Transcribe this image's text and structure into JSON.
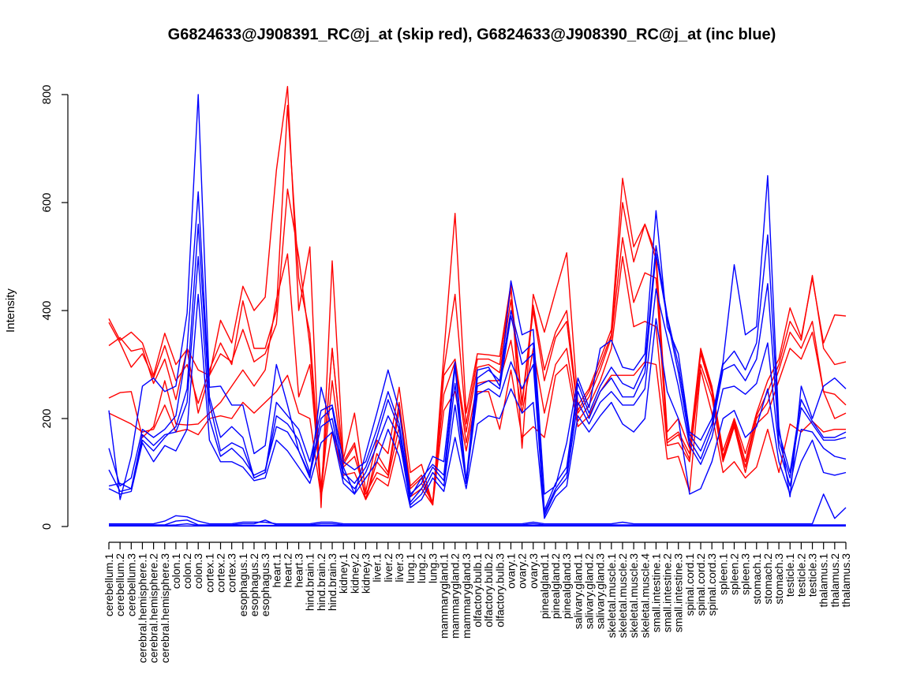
{
  "chart_data": {
    "type": "line",
    "title": "G6824633@J908391_RC@j_at (skip red), G6824633@J908390_RC@j_at (inc blue)",
    "xlabel": "",
    "ylabel": "Intensity",
    "ylim": [
      0,
      800
    ],
    "yticks": [
      0,
      200,
      400,
      600,
      800
    ],
    "grid": false,
    "categories": [
      "cerebellum.1",
      "cerebellum.2",
      "cerebellum.3",
      "cerebral.hemisphere.1",
      "cerebral.hemisphere.2",
      "cerebral.hemisphere.3",
      "colon.1",
      "colon.2",
      "colon.3",
      "cortex.1",
      "cortex.2",
      "cortex.3",
      "esophagus.1",
      "esophagus.2",
      "esophagus.3",
      "heart.1",
      "heart.2",
      "heart.3",
      "hind.brain.1",
      "hind.brain.2",
      "hind.brain.3",
      "kidney.1",
      "kidney.2",
      "kidney.3",
      "liver.1",
      "liver.2",
      "liver.3",
      "lung.1",
      "lung.2",
      "lung.3",
      "mammarygland.1",
      "mammarygland.2",
      "mammarygland.3",
      "olfactory.bulb.1",
      "olfactory.bulb.2",
      "olfactory.bulb.3",
      "ovary.1",
      "ovary.2",
      "ovary.3",
      "pinealgland.1",
      "pinealgland.2",
      "pinealgland.3",
      "salivary.gland.1",
      "salivary.gland.2",
      "salivary.gland.3",
      "skeletal.muscle.1",
      "skeletal.muscle.2",
      "skeletal.muscle.3",
      "skeletal.muscle.4",
      "small.intestine.1",
      "small.intestine.2",
      "small.intestine.3",
      "spinal.cord.1",
      "spinal.cord.2",
      "spinal.cord.3",
      "spleen.1",
      "spleen.2",
      "spleen.3",
      "stomach.1",
      "stomach.2",
      "stomach.3",
      "testicle.1",
      "testicle.2",
      "testicle.3",
      "thalamus.1",
      "thalamus.2",
      "thalamus.3"
    ],
    "series": [
      {
        "color": "#ff0000",
        "values": [
          385,
          345,
          360,
          340,
          280,
          358,
          300,
          328,
          210,
          280,
          382,
          340,
          445,
          400,
          425,
          660,
          815,
          400,
          518,
          35,
          492,
          125,
          210,
          65,
          160,
          135,
          258,
          100,
          115,
          40,
          320,
          580,
          210,
          320,
          318,
          315,
          450,
          145,
          430,
          360,
          435,
          507,
          225,
          255,
          310,
          365,
          645,
          518,
          560,
          505,
          175,
          200,
          145,
          330,
          260,
          140,
          200,
          135,
          210,
          270,
          310,
          405,
          350,
          460,
          340,
          392,
          390
        ]
      },
      {
        "color": "#ff0000",
        "values": [
          378,
          340,
          295,
          320,
          275,
          335,
          270,
          300,
          228,
          290,
          340,
          300,
          418,
          330,
          330,
          400,
          780,
          460,
          358,
          70,
          330,
          120,
          155,
          50,
          135,
          100,
          230,
          75,
          95,
          45,
          290,
          430,
          190,
          310,
          310,
          300,
          440,
          230,
          410,
          290,
          360,
          400,
          215,
          250,
          300,
          355,
          600,
          490,
          560,
          495,
          160,
          175,
          135,
          325,
          255,
          130,
          195,
          120,
          205,
          250,
          300,
          380,
          345,
          465,
          330,
          300,
          305
        ]
      },
      {
        "color": "#ff0000",
        "values": [
          335,
          350,
          325,
          330,
          265,
          310,
          235,
          330,
          290,
          280,
          320,
          305,
          365,
          305,
          320,
          375,
          625,
          500,
          335,
          60,
          330,
          115,
          150,
          50,
          120,
          95,
          215,
          70,
          90,
          40,
          280,
          310,
          175,
          295,
          300,
          285,
          420,
          225,
          400,
          270,
          350,
          380,
          210,
          240,
          290,
          350,
          535,
          415,
          470,
          460,
          155,
          170,
          125,
          320,
          250,
          125,
          190,
          110,
          200,
          230,
          290,
          360,
          330,
          380,
          250,
          245,
          225
        ]
      },
      {
        "color": "#ff0000",
        "values": [
          238,
          248,
          250,
          165,
          185,
          270,
          190,
          188,
          190,
          210,
          230,
          260,
          290,
          260,
          290,
          420,
          505,
          240,
          300,
          60,
          270,
          110,
          130,
          60,
          100,
          90,
          185,
          60,
          80,
          45,
          245,
          305,
          155,
          265,
          270,
          270,
          345,
          210,
          330,
          210,
          300,
          330,
          195,
          225,
          270,
          330,
          500,
          370,
          380,
          370,
          150,
          155,
          120,
          300,
          240,
          120,
          185,
          100,
          190,
          210,
          270,
          330,
          310,
          360,
          250,
          200,
          210
        ]
      },
      {
        "color": "#ff0000",
        "values": [
          210,
          200,
          190,
          175,
          180,
          225,
          175,
          180,
          170,
          200,
          205,
          200,
          230,
          210,
          230,
          250,
          280,
          210,
          200,
          55,
          175,
          95,
          100,
          50,
          90,
          75,
          160,
          55,
          70,
          40,
          215,
          250,
          140,
          250,
          250,
          180,
          290,
          165,
          185,
          165,
          280,
          300,
          185,
          205,
          250,
          280,
          280,
          280,
          305,
          300,
          125,
          130,
          65,
          290,
          210,
          100,
          120,
          90,
          110,
          180,
          100,
          190,
          175,
          195,
          175,
          180,
          180
        ]
      },
      {
        "color": "#0000ff",
        "values": [
          215,
          50,
          130,
          260,
          275,
          250,
          260,
          395,
          800,
          258,
          260,
          225,
          225,
          135,
          150,
          300,
          225,
          140,
          90,
          258,
          180,
          110,
          60,
          135,
          210,
          290,
          215,
          60,
          80,
          130,
          120,
          305,
          85,
          290,
          295,
          260,
          455,
          355,
          365,
          60,
          75,
          155,
          275,
          220,
          330,
          345,
          295,
          290,
          320,
          585,
          370,
          320,
          175,
          160,
          200,
          305,
          485,
          355,
          370,
          650,
          185,
          55,
          260,
          200,
          260,
          275,
          255
        ]
      },
      {
        "color": "#0000ff",
        "values": [
          145,
          75,
          90,
          180,
          165,
          180,
          205,
          330,
          620,
          240,
          165,
          185,
          165,
          90,
          100,
          230,
          205,
          180,
          120,
          215,
          225,
          120,
          105,
          120,
          180,
          250,
          190,
          55,
          90,
          115,
          95,
          295,
          80,
          275,
          290,
          270,
          400,
          320,
          340,
          30,
          80,
          110,
          265,
          210,
          260,
          295,
          265,
          255,
          300,
          520,
          390,
          300,
          170,
          140,
          190,
          300,
          325,
          290,
          340,
          540,
          175,
          100,
          235,
          195,
          165,
          165,
          175
        ]
      },
      {
        "color": "#0000ff",
        "values": [
          105,
          65,
          70,
          160,
          140,
          165,
          185,
          255,
          560,
          230,
          140,
          155,
          145,
          90,
          100,
          205,
          190,
          160,
          100,
          200,
          220,
          100,
          80,
          110,
          165,
          235,
          180,
          45,
          70,
          110,
          85,
          265,
          80,
          260,
          270,
          255,
          390,
          300,
          320,
          25,
          70,
          100,
          250,
          200,
          250,
          275,
          240,
          240,
          285,
          505,
          385,
          285,
          160,
          125,
          180,
          290,
          300,
          270,
          310,
          450,
          160,
          90,
          220,
          190,
          160,
          160,
          165
        ]
      },
      {
        "color": "#0000ff",
        "values": [
          75,
          80,
          70,
          170,
          150,
          170,
          175,
          230,
          500,
          200,
          130,
          145,
          125,
          95,
          105,
          185,
          175,
          140,
          95,
          185,
          200,
          90,
          70,
          100,
          150,
          205,
          165,
          40,
          60,
          100,
          75,
          225,
          80,
          245,
          255,
          240,
          305,
          255,
          300,
          20,
          65,
          90,
          230,
          190,
          230,
          250,
          225,
          225,
          255,
          440,
          350,
          260,
          150,
          115,
          165,
          255,
          260,
          245,
          265,
          340,
          145,
          75,
          180,
          175,
          145,
          130,
          125
        ]
      },
      {
        "color": "#0000ff",
        "values": [
          70,
          60,
          65,
          155,
          120,
          150,
          140,
          180,
          430,
          160,
          120,
          120,
          110,
          85,
          90,
          160,
          140,
          110,
          80,
          155,
          175,
          80,
          60,
          90,
          120,
          180,
          130,
          35,
          50,
          90,
          65,
          165,
          70,
          190,
          205,
          200,
          255,
          210,
          230,
          15,
          55,
          75,
          205,
          175,
          205,
          230,
          190,
          175,
          200,
          385,
          250,
          200,
          60,
          70,
          120,
          200,
          215,
          165,
          185,
          255,
          120,
          60,
          120,
          160,
          100,
          95,
          100
        ]
      },
      {
        "color": "#0000ff",
        "values": [
          5,
          5,
          5,
          5,
          5,
          10,
          20,
          18,
          10,
          5,
          5,
          5,
          8,
          8,
          8,
          5,
          5,
          5,
          5,
          8,
          8,
          5,
          5,
          5,
          5,
          5,
          5,
          5,
          5,
          5,
          5,
          5,
          5,
          5,
          5,
          5,
          5,
          5,
          8,
          5,
          5,
          5,
          5,
          5,
          5,
          5,
          8,
          5,
          5,
          5,
          5,
          5,
          5,
          5,
          5,
          5,
          5,
          5,
          5,
          5,
          5,
          5,
          5,
          5,
          60,
          15,
          35
        ]
      },
      {
        "color": "#0000ff",
        "values": [
          3,
          3,
          3,
          3,
          3,
          3,
          10,
          12,
          3,
          3,
          3,
          3,
          5,
          5,
          12,
          3,
          3,
          3,
          3,
          5,
          5,
          3,
          3,
          3,
          3,
          3,
          3,
          3,
          3,
          3,
          3,
          3,
          3,
          3,
          3,
          3,
          3,
          3,
          5,
          3,
          3,
          3,
          3,
          3,
          3,
          3,
          3,
          3,
          3,
          3,
          3,
          3,
          3,
          3,
          3,
          3,
          3,
          3,
          3,
          3,
          3,
          3,
          3,
          3,
          3,
          3,
          3
        ]
      },
      {
        "color": "#0000ff",
        "values": [
          2,
          2,
          2,
          2,
          2,
          2,
          3,
          5,
          2,
          2,
          2,
          2,
          2,
          2,
          2,
          2,
          2,
          2,
          2,
          2,
          2,
          2,
          2,
          2,
          2,
          2,
          2,
          2,
          2,
          2,
          2,
          2,
          2,
          2,
          2,
          2,
          2,
          2,
          2,
          2,
          2,
          2,
          2,
          2,
          2,
          2,
          2,
          2,
          2,
          2,
          2,
          2,
          2,
          2,
          2,
          2,
          2,
          2,
          2,
          2,
          2,
          2,
          2,
          2,
          2,
          2,
          2
        ]
      },
      {
        "color": "#0000ff",
        "values": [
          1,
          1,
          1,
          1,
          1,
          1,
          1,
          1,
          1,
          1,
          1,
          1,
          1,
          1,
          1,
          1,
          1,
          1,
          1,
          1,
          1,
          1,
          1,
          1,
          1,
          1,
          1,
          1,
          1,
          1,
          1,
          1,
          1,
          1,
          1,
          1,
          1,
          1,
          1,
          1,
          1,
          1,
          1,
          1,
          1,
          1,
          1,
          1,
          1,
          1,
          1,
          1,
          1,
          1,
          1,
          1,
          1,
          1,
          1,
          1,
          1,
          1,
          1,
          1,
          1,
          1,
          1
        ]
      }
    ]
  }
}
